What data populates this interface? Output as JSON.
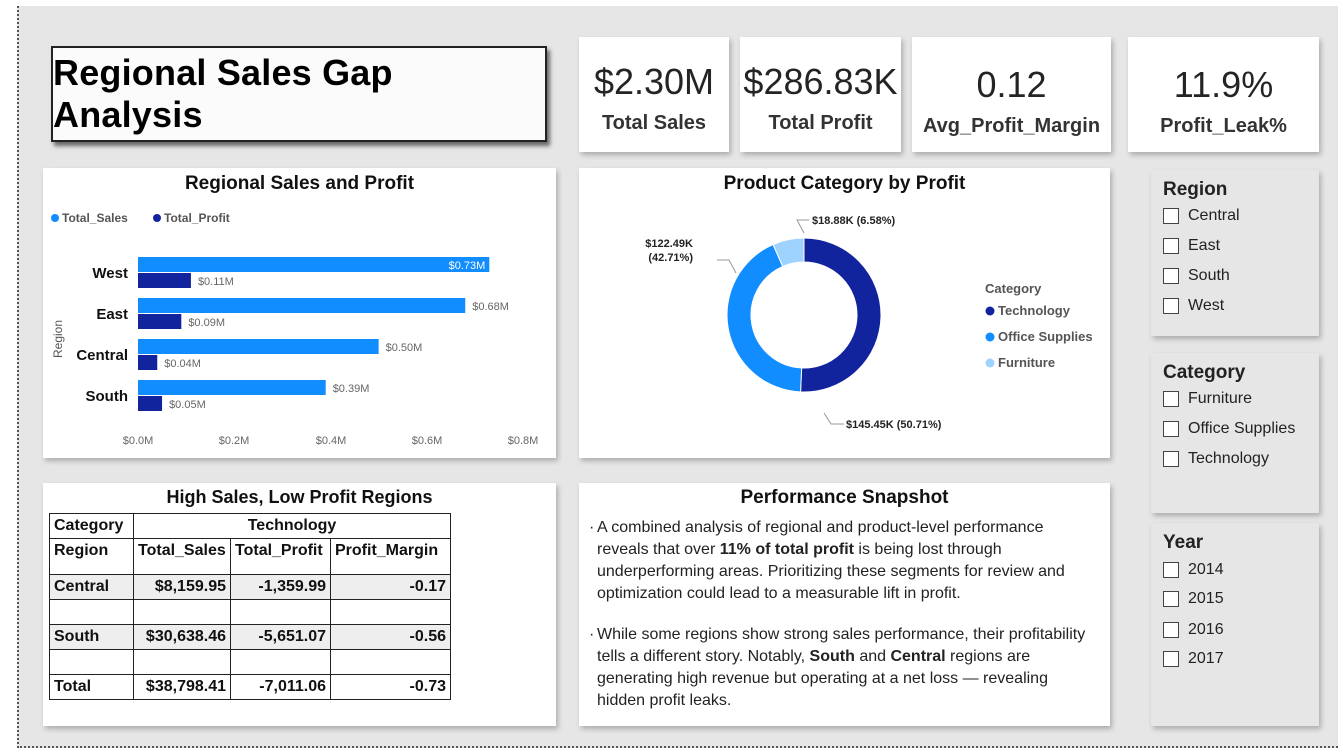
{
  "title": "Regional Sales Gap Analysis",
  "kpis": [
    {
      "value": "$2.30M",
      "label": "Total Sales"
    },
    {
      "value": "$286.83K",
      "label": "Total Profit"
    },
    {
      "value": "0.12",
      "label": "Avg_Profit_Margin"
    },
    {
      "value": "11.9%",
      "label": "Profit_Leak%"
    }
  ],
  "regional_chart": {
    "title": "Regional Sales and Profit",
    "legend_sales": "Total_Sales",
    "legend_profit": "Total_Profit",
    "ylabel": "Region",
    "x_ticks": [
      "$0.0M",
      "$0.2M",
      "$0.4M",
      "$0.6M",
      "$0.8M"
    ],
    "rows": [
      {
        "region": "West",
        "sales_label": "$0.73M",
        "profit_label": "$0.11M"
      },
      {
        "region": "East",
        "sales_label": "$0.68M",
        "profit_label": "$0.09M"
      },
      {
        "region": "Central",
        "sales_label": "$0.50M",
        "profit_label": "$0.04M"
      },
      {
        "region": "South",
        "sales_label": "$0.39M",
        "profit_label": "$0.05M"
      }
    ]
  },
  "donut_chart": {
    "title": "Product Category by Profit",
    "legend_title": "Category",
    "slices": [
      {
        "name": "Technology",
        "label": "$145.45K (50.71%)"
      },
      {
        "name": "Office Supplies",
        "label_line1": "$122.49K",
        "label_line2": "(42.71%)"
      },
      {
        "name": "Furniture",
        "label": "$18.88K (6.58%)"
      }
    ]
  },
  "chart_data": [
    {
      "type": "bar",
      "title": "Regional Sales and Profit",
      "ylabel": "Region",
      "categories": [
        "West",
        "East",
        "Central",
        "South"
      ],
      "series": [
        {
          "name": "Total_Sales",
          "values": [
            0.73,
            0.68,
            0.5,
            0.39
          ]
        },
        {
          "name": "Total_Profit",
          "values": [
            0.11,
            0.09,
            0.04,
            0.05
          ]
        }
      ],
      "xlim": [
        0,
        0.8
      ],
      "orientation": "horizontal",
      "legend": "top-left",
      "colors": {
        "Total_Sales": "#118dff",
        "Total_Profit": "#12239e"
      }
    },
    {
      "type": "pie",
      "title": "Product Category by Profit",
      "donut": true,
      "categories": [
        "Technology",
        "Office Supplies",
        "Furniture"
      ],
      "values": [
        145.45,
        122.49,
        18.88
      ],
      "percents": [
        50.71,
        42.71,
        6.58
      ],
      "legend": "right",
      "colors": {
        "Technology": "#12239e",
        "Office Supplies": "#118dff",
        "Furniture": "#9fd3ff"
      }
    }
  ],
  "table": {
    "title": "High Sales, Low Profit Regions",
    "header_category": "Category",
    "header_category_value": "Technology",
    "header_region": "Region",
    "columns": [
      "Total_Sales",
      "Total_Profit",
      "Profit_Margin"
    ],
    "rows": [
      {
        "region": "Central",
        "total_sales": "$8,159.95",
        "total_profit": "-1,359.99",
        "margin": "-0.17"
      },
      {
        "region": "South",
        "total_sales": "$30,638.46",
        "total_profit": "-5,651.07",
        "margin": "-0.56"
      },
      {
        "region": "Total",
        "total_sales": "$38,798.41",
        "total_profit": "-7,011.06",
        "margin": "-0.73"
      }
    ]
  },
  "snapshot": {
    "title": "Performance Snapshot",
    "p1_a": "A combined analysis of regional and product-level performance reveals that over ",
    "p1_b": "11% of total profit",
    "p1_c": " is being lost through underperforming areas. Prioritizing these segments for review and optimization could lead to a measurable lift in profit.",
    "p2_a": "While some regions show strong sales performance, their profitability tells a different story. Notably, ",
    "p2_b": "South",
    "p2_c": " and ",
    "p2_d": "Central",
    "p2_e": " regions are generating high revenue but operating at a net loss — revealing hidden profit leaks."
  },
  "slicers": {
    "region": {
      "title": "Region",
      "items": [
        "Central",
        "East",
        "South",
        "West"
      ]
    },
    "category": {
      "title": "Category",
      "items": [
        "Furniture",
        "Office Supplies",
        "Technology"
      ]
    },
    "year": {
      "title": "Year",
      "items": [
        "2014",
        "2015",
        "2016",
        "2017"
      ]
    }
  }
}
